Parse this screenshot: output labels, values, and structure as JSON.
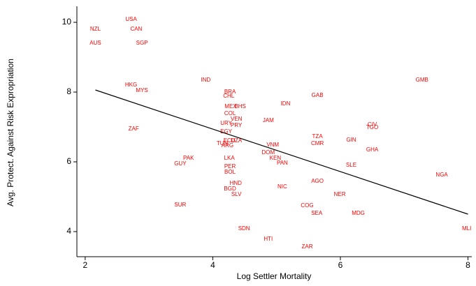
{
  "chart_data": {
    "type": "scatter",
    "x_label": "Log Settler Mortality",
    "y_label": "Avg. Protect. Against Risk Expropriation",
    "xlim": [
      1.87,
      8.06
    ],
    "ylim": [
      3.28,
      10.46
    ],
    "xticks": [
      2,
      4,
      6,
      8
    ],
    "yticks": [
      4,
      6,
      8,
      10
    ],
    "series": [
      {
        "color": "#ff0000",
        "labels": [
          "USA",
          "NZL",
          "CAN",
          "AUS",
          "SGP",
          "HKG",
          "MYS",
          "IND",
          "ZAF",
          "PAK",
          "GUY",
          "SUR",
          "BRA",
          "CHL",
          "MEX",
          "BHS",
          "COL",
          "VEN",
          "URY",
          "PRY",
          "EGY",
          "ECU",
          "DZA",
          "TUN",
          "ARG",
          "JAM",
          "IDN",
          "GAB",
          "TZA",
          "CMR",
          "GIN",
          "CIV",
          "TGO",
          "GHA",
          "GMB",
          "NGA",
          "SLE",
          "VNM",
          "DOM",
          "KEN",
          "PAN",
          "LKA",
          "PER",
          "BOL",
          "HND",
          "BGD",
          "SLV",
          "NIC",
          "AGO",
          "NER",
          "COG",
          "SEA",
          "MDG",
          "MLI",
          "SDN",
          "HTI",
          "ZAR"
        ],
        "x": [
          2.72,
          2.16,
          2.8,
          2.16,
          2.89,
          2.72,
          2.89,
          3.89,
          2.76,
          3.62,
          3.49,
          3.49,
          4.27,
          4.25,
          4.28,
          4.43,
          4.27,
          4.37,
          4.21,
          4.37,
          4.21,
          4.26,
          4.37,
          4.15,
          4.23,
          4.87,
          5.14,
          5.64,
          5.64,
          5.64,
          6.17,
          6.5,
          6.5,
          6.5,
          7.28,
          7.59,
          6.17,
          4.94,
          4.87,
          4.98,
          5.09,
          4.26,
          4.27,
          4.27,
          4.36,
          4.27,
          4.37,
          5.09,
          5.64,
          5.99,
          5.48,
          5.63,
          6.28,
          7.98,
          4.49,
          4.87,
          5.48
        ],
        "values": [
          10.08,
          9.8,
          9.8,
          9.4,
          9.4,
          8.2,
          8.04,
          8.34,
          6.94,
          6.1,
          5.94,
          4.76,
          8.0,
          7.88,
          7.58,
          7.58,
          7.38,
          7.22,
          7.1,
          7.04,
          6.86,
          6.6,
          6.6,
          6.52,
          6.46,
          7.18,
          7.66,
          7.9,
          6.72,
          6.52,
          6.62,
          7.06,
          6.98,
          6.34,
          8.34,
          5.62,
          5.9,
          6.48,
          6.26,
          6.1,
          5.96,
          6.1,
          5.86,
          5.7,
          5.38,
          5.22,
          5.06,
          5.28,
          5.44,
          5.06,
          4.74,
          4.52,
          4.52,
          4.08,
          4.08,
          3.78,
          3.56
        ]
      }
    ],
    "fit": {
      "color": "#000000",
      "x": [
        2.16,
        8
      ],
      "values": [
        8.06,
        4.5
      ]
    }
  }
}
